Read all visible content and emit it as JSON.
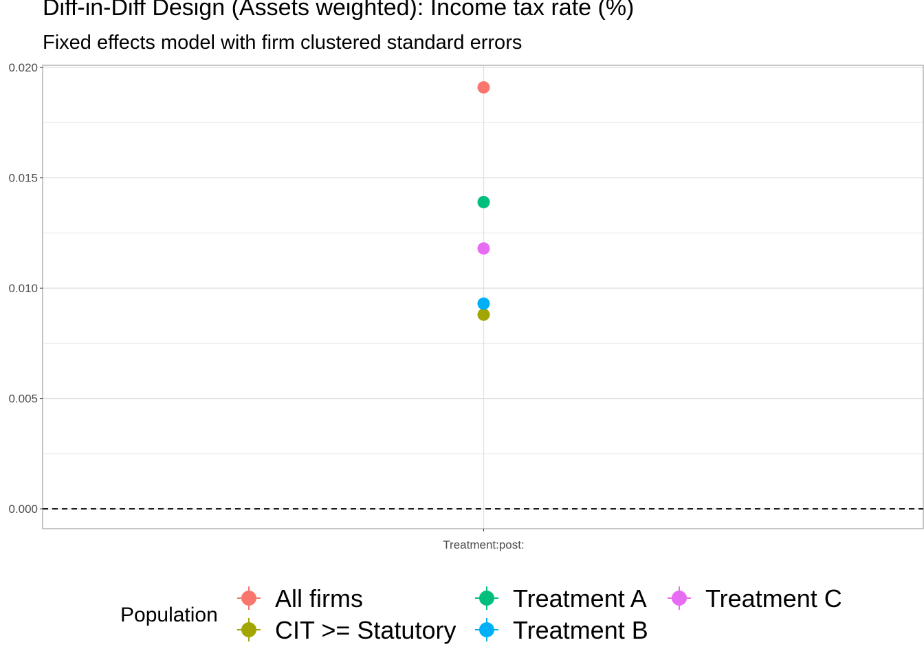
{
  "title": "Diff-in-Diff Design (Assets weighted): Income tax rate  (%)",
  "subtitle": "Fixed effects model with firm clustered standard errors",
  "chart_data": {
    "type": "scatter",
    "title": "Diff-in-Diff Design (Assets weighted): Income tax rate  (%)",
    "subtitle": "Fixed effects model with firm clustered standard errors",
    "xlabel": "",
    "ylabel": "",
    "categories": [
      "Treatment:post:"
    ],
    "ylim": [
      -0.0009,
      0.0201
    ],
    "yticks": [
      0.0,
      0.005,
      0.01,
      0.015,
      0.02
    ],
    "ytick_labels": [
      "0.000",
      "0.005",
      "0.010",
      "0.015",
      "0.020"
    ],
    "reference_line": {
      "y": 0,
      "style": "dashed"
    },
    "grid": true,
    "legend": {
      "title": "Population",
      "position": "bottom"
    },
    "series": [
      {
        "name": "All firms",
        "values": [
          0.0191
        ],
        "color": "#F8766D"
      },
      {
        "name": "CIT >= Statutory",
        "values": [
          0.0088
        ],
        "color": "#A3A500"
      },
      {
        "name": "Treatment A",
        "values": [
          0.0139
        ],
        "color": "#00BF7D"
      },
      {
        "name": "Treatment B",
        "values": [
          0.0093
        ],
        "color": "#00B0F6"
      },
      {
        "name": "Treatment C",
        "values": [
          0.0118
        ],
        "color": "#E76BF3"
      }
    ]
  }
}
